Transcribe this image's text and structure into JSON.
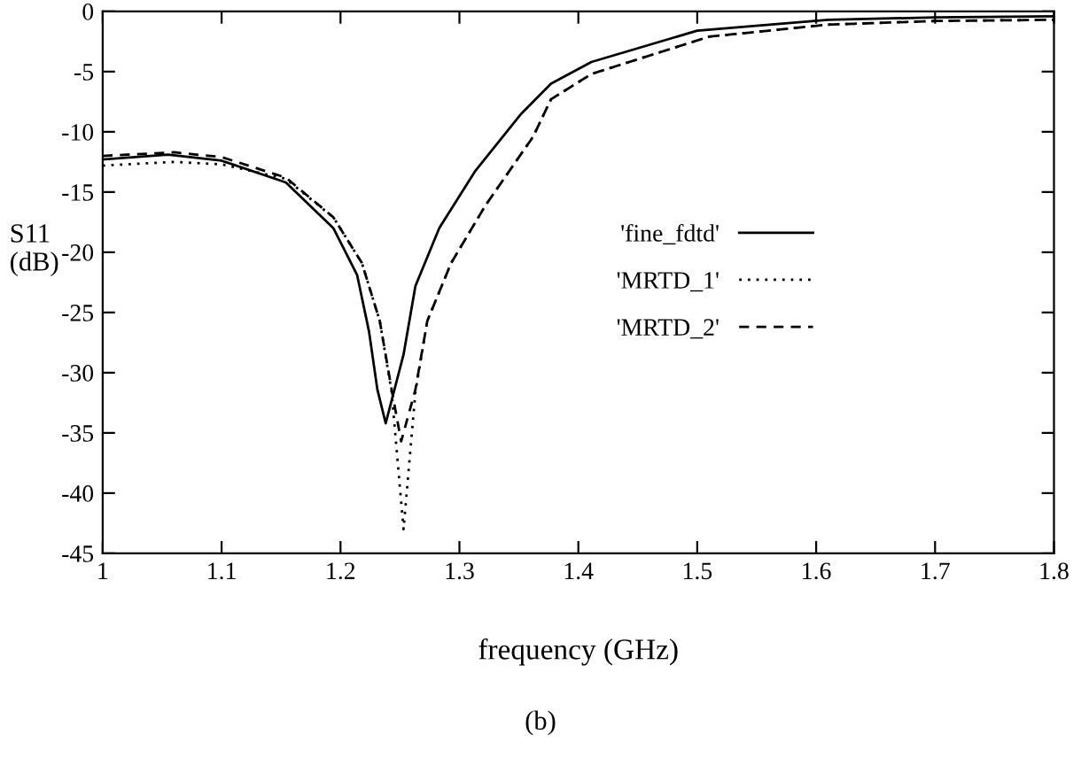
{
  "chart_data": {
    "type": "line",
    "xlabel": "frequency (GHz)",
    "ylabel": "S11\n(dB)",
    "annotations": [
      "(b)"
    ],
    "xlim": [
      1,
      1.8
    ],
    "ylim": [
      -45,
      0
    ],
    "xticks": [
      1,
      1.1,
      1.2,
      1.3,
      1.4,
      1.5,
      1.6,
      1.7,
      1.8
    ],
    "yticks": [
      -45,
      -40,
      -35,
      -30,
      -25,
      -20,
      -15,
      -10,
      -5,
      0
    ],
    "grid": false,
    "legend": "right",
    "marker": "none",
    "series": [
      {
        "name": "'fine_fdtd'",
        "color": "#000000",
        "line_style": "solid",
        "x": [
          1.0,
          1.055,
          1.1,
          1.154,
          1.194,
          1.214,
          1.224,
          1.231,
          1.238,
          1.253,
          1.263,
          1.283,
          1.313,
          1.352,
          1.377,
          1.411,
          1.5,
          1.61,
          1.7,
          1.8
        ],
        "values": [
          -12.3,
          -11.9,
          -12.4,
          -14.2,
          -18.0,
          -21.9,
          -26.6,
          -31.4,
          -34.2,
          -28.5,
          -22.8,
          -18.0,
          -13.3,
          -8.5,
          -6.0,
          -4.2,
          -1.6,
          -0.7,
          -0.5,
          -0.4
        ]
      },
      {
        "name": "'MRTD_1'",
        "color": "#000000",
        "line_style": "dotted",
        "x": [
          1.0,
          1.06,
          1.1,
          1.154,
          1.194,
          1.218,
          1.233,
          1.243,
          1.253,
          1.263,
          1.273,
          1.293,
          1.322,
          1.362,
          1.377,
          1.411,
          1.51,
          1.61,
          1.7,
          1.8
        ],
        "values": [
          -12.8,
          -12.5,
          -12.7,
          -13.9,
          -17.1,
          -20.9,
          -25.7,
          -31.6,
          -43.0,
          -31.6,
          -25.7,
          -20.9,
          -16.1,
          -10.4,
          -7.3,
          -5.2,
          -2.1,
          -1.1,
          -0.8,
          -0.7
        ]
      },
      {
        "name": "'MRTD_2'",
        "color": "#000000",
        "line_style": "dashed",
        "x": [
          1.0,
          1.06,
          1.1,
          1.154,
          1.194,
          1.218,
          1.233,
          1.243,
          1.251,
          1.263,
          1.273,
          1.293,
          1.322,
          1.362,
          1.377,
          1.411,
          1.51,
          1.61,
          1.7,
          1.8
        ],
        "values": [
          -12.0,
          -11.7,
          -12.1,
          -13.8,
          -17.1,
          -20.9,
          -25.7,
          -31.4,
          -35.7,
          -31.4,
          -25.7,
          -20.9,
          -16.1,
          -10.4,
          -7.3,
          -5.2,
          -2.1,
          -1.1,
          -0.8,
          -0.7
        ]
      }
    ]
  }
}
